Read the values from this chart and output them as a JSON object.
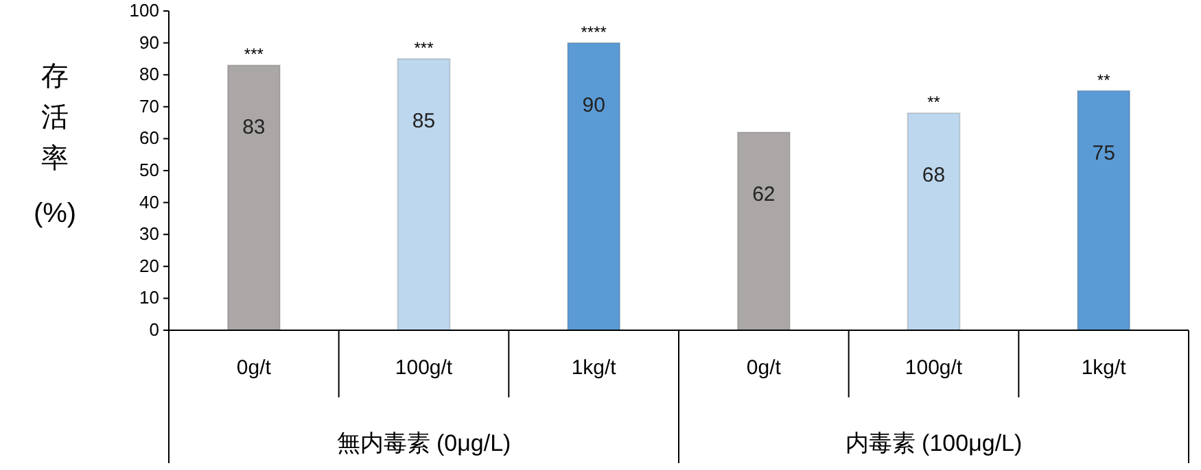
{
  "chart_data": {
    "type": "bar",
    "ylabel": "存活率 (%)",
    "categories": [
      "0g/t",
      "100g/t",
      "1kg/t",
      "0g/t",
      "100g/t",
      "1kg/t"
    ],
    "values": [
      83,
      85,
      90,
      62,
      68,
      75
    ],
    "colors": [
      "#aba7a6",
      "#bdd7ee",
      "#5b9bd5",
      "#aba7a6",
      "#bdd7ee",
      "#5b9bd5"
    ],
    "ylim": [
      0,
      100
    ],
    "yticks": [
      0,
      10,
      20,
      30,
      40,
      50,
      60,
      70,
      80,
      90,
      100
    ],
    "grid": false,
    "data_labels": true,
    "annotations": [
      {
        "text": "***",
        "x": "0g/t",
        "y": 83
      },
      {
        "text": "***",
        "x": "100g/t",
        "y": 85
      },
      {
        "text": "****",
        "x": "1kg/t",
        "y": 90
      },
      "**",
      "**",
      "無内毒素 (0μg/L)",
      "内毒素 (100μg/L)"
    ]
  }
}
